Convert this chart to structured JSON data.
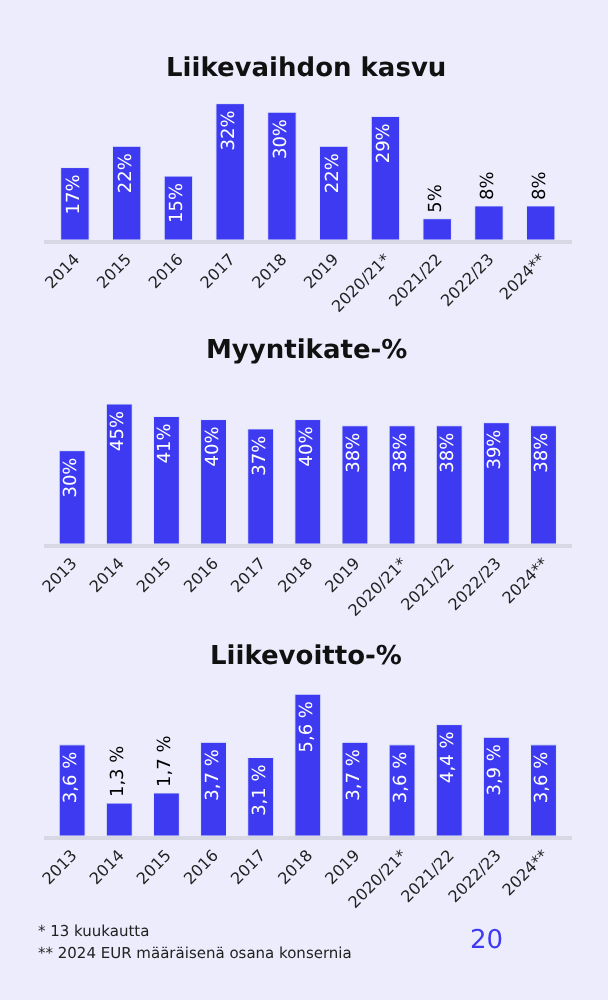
{
  "chart_data": [
    {
      "type": "bar",
      "title": "Liikevaihdon kasvu",
      "categories": [
        "2014",
        "2015",
        "2016",
        "2017",
        "2018",
        "2019",
        "2020/21*",
        "2021/22",
        "2022/23",
        "2024**"
      ],
      "values": [
        17,
        22,
        15,
        32,
        30,
        22,
        29,
        5,
        8,
        8
      ],
      "color": "#3d3af2",
      "value_labels": [
        "17%",
        "22%",
        "15%",
        "32%",
        "30%",
        "22%",
        "29%",
        "5%",
        "8%",
        "8%"
      ],
      "tick_labels": "x"
    },
    {
      "type": "bar",
      "title": "Myyntikate-%",
      "categories": [
        "2013",
        "2014",
        "2015",
        "2016",
        "2017",
        "2018",
        "2019",
        "2020/21*",
        "2021/22",
        "2022/23",
        "2024**"
      ],
      "values": [
        30,
        45,
        41,
        40,
        37,
        40,
        38,
        38,
        38,
        39,
        38
      ],
      "color": "#3d3af2",
      "value_labels": [
        "30%",
        "45%",
        "41%",
        "40%",
        "37%",
        "40%",
        "38%",
        "38%",
        "38%",
        "39%",
        "38%"
      ],
      "tick_labels": "x"
    },
    {
      "type": "bar",
      "title": "Liikevoitto-%",
      "categories": [
        "2013",
        "2014",
        "2015",
        "2016",
        "2017",
        "2018",
        "2019",
        "2020/21*",
        "2021/22",
        "2022/23",
        "2024**"
      ],
      "values": [
        3.6,
        1.3,
        1.7,
        3.7,
        3.1,
        5.6,
        3.7,
        3.6,
        4.4,
        3.9,
        3.6
      ],
      "color": "#3d3af2",
      "value_labels": [
        "3,6 %",
        "1,3 %",
        "1,7 %",
        "3,7 %",
        "3,1 %",
        "5,6 %",
        "3,7 %",
        "3,6 %",
        "4,4 %",
        "3,9 %",
        "3,6 %"
      ],
      "tick_labels": "x",
      "annotations": [
        "* 13 kuukautta",
        "** 2024 EUR määräisenä osana konsernia",
        "20"
      ]
    }
  ]
}
